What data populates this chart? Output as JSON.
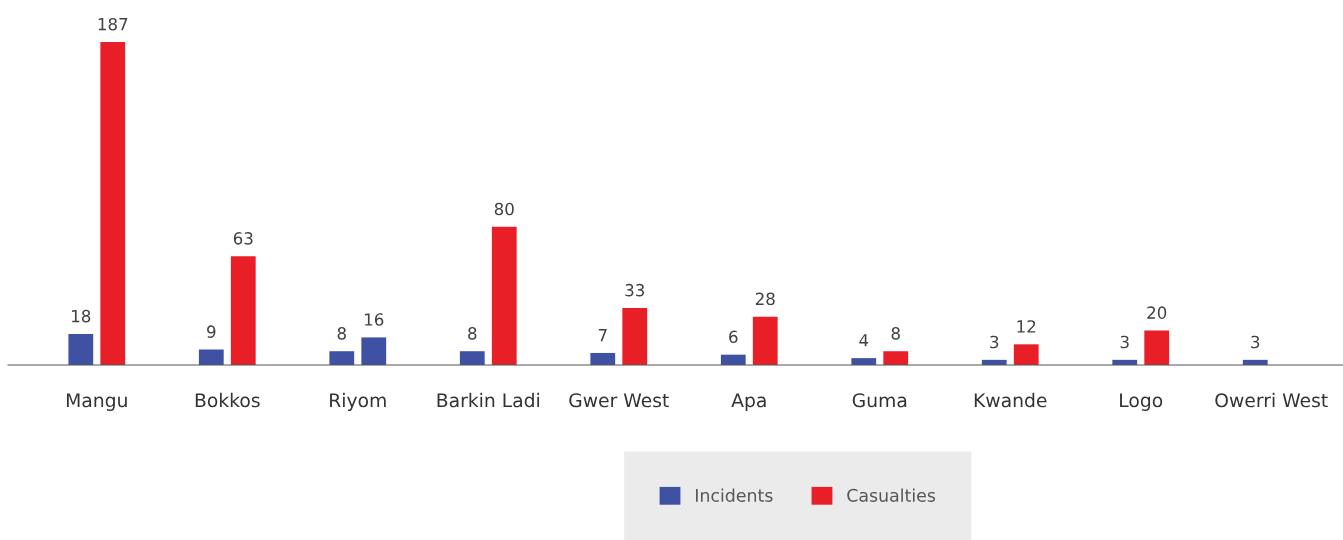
{
  "chart_data": {
    "type": "bar",
    "categories": [
      "Mangu",
      "Bokkos",
      "Riyom",
      "Barkin Ladi",
      "Gwer West",
      "Apa",
      "Guma",
      "Kwande",
      "Logo",
      "Owerri West"
    ],
    "series": [
      {
        "name": "Incidents",
        "color": "#3f51a3",
        "values": [
          18,
          9,
          8,
          8,
          7,
          6,
          4,
          3,
          3,
          3
        ]
      },
      {
        "name": "Casualties",
        "color": "#e81f27",
        "colors": [
          "#e81f27",
          "#e81f27",
          "#3f51a3",
          "#e81f27",
          "#e81f27",
          "#e81f27",
          "#e81f27",
          "#e81f27",
          "#e81f27",
          "#e81f27"
        ],
        "values": [
          187,
          63,
          16,
          80,
          33,
          28,
          8,
          12,
          20,
          null
        ]
      }
    ],
    "data_labels": true,
    "legend": "bottom",
    "grid": false
  }
}
